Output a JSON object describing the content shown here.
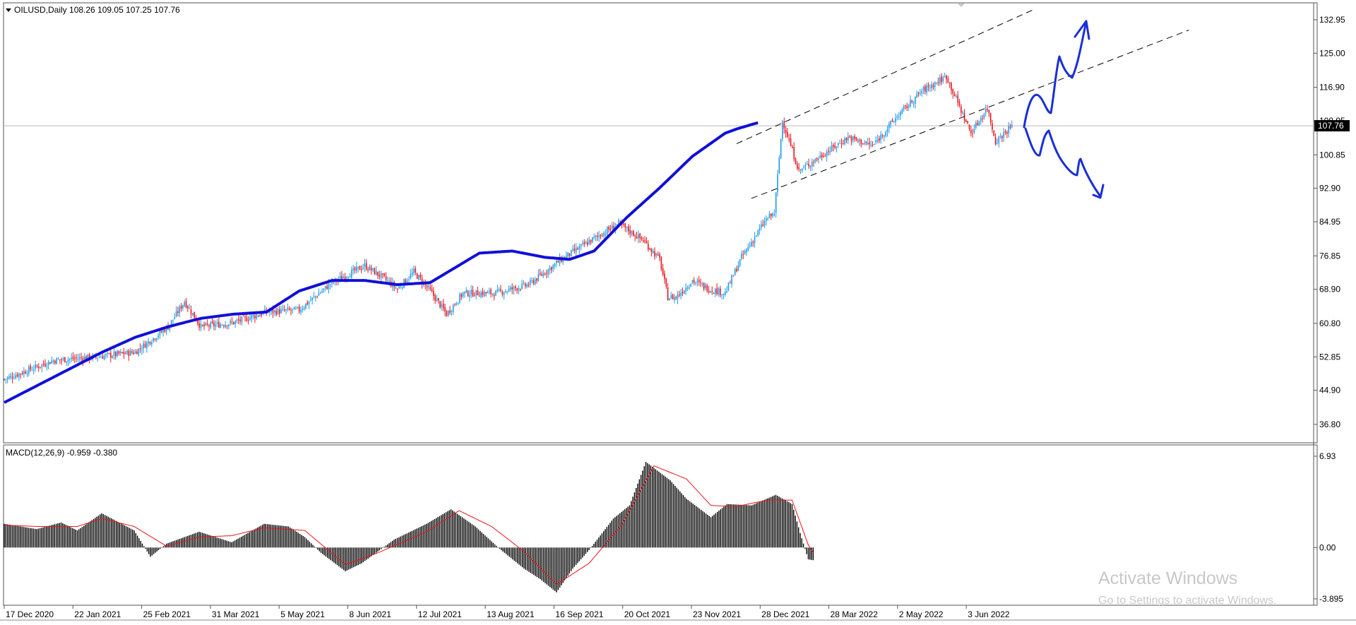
{
  "window": {
    "symbol_line": "OILUSD,Daily  108.26 109.05 107.25 107.76"
  },
  "watermark": {
    "line1": "Activate Windows",
    "line2": "Go to Settings to activate Windows."
  },
  "colors": {
    "bull": "#1e9bea",
    "bear": "#e8141c",
    "ma": "#1010d8",
    "annotation": "#1a2fd6",
    "macd_hist": "#000000",
    "macd_signal": "#e8141c"
  },
  "chart_data": [
    {
      "type": "candlestick",
      "title": "OILUSD,Daily",
      "ohlc_readout": {
        "open": 108.26,
        "high": 109.05,
        "low": 107.25,
        "close": 107.76
      },
      "current_price_label": "107.76",
      "y_ticks": [
        "132.95",
        "125.00",
        "116.90",
        "108.95",
        "100.85",
        "92.90",
        "84.95",
        "76.85",
        "68.90",
        "60.80",
        "52.85",
        "44.90",
        "36.80"
      ],
      "ylim": [
        33.6,
        136.3
      ],
      "x_ticks": [
        "17 Dec 2020",
        "22 Jan 2021",
        "25 Feb 2021",
        "31 Mar 2021",
        "5 May 2021",
        "8 Jun 2021",
        "12 Jul 2021",
        "13 Aug 2021",
        "16 Sep 2021",
        "20 Oct 2021",
        "23 Nov 2021",
        "28 Dec 2021",
        "28 Mar 2022",
        "2 May 2022",
        "3 Jun 2022"
      ],
      "price_path": [
        [
          0,
          47.5
        ],
        [
          30,
          52
        ],
        [
          60,
          53
        ],
        [
          80,
          54
        ],
        [
          100,
          60
        ],
        [
          110,
          66
        ],
        [
          120,
          60
        ],
        [
          140,
          61
        ],
        [
          160,
          63.5
        ],
        [
          180,
          64
        ],
        [
          200,
          70.5
        ],
        [
          220,
          74.5
        ],
        [
          230,
          72
        ],
        [
          240,
          69
        ],
        [
          250,
          73
        ],
        [
          260,
          68.5
        ],
        [
          270,
          63
        ],
        [
          280,
          68
        ],
        [
          300,
          68
        ],
        [
          320,
          70
        ],
        [
          340,
          76
        ],
        [
          360,
          81
        ],
        [
          375,
          84.5
        ],
        [
          390,
          80.5
        ],
        [
          400,
          76
        ],
        [
          405,
          67
        ],
        [
          410,
          67
        ],
        [
          420,
          71
        ],
        [
          430,
          69
        ],
        [
          440,
          68
        ],
        [
          450,
          76.5
        ],
        [
          465,
          85.5
        ],
        [
          470,
          87
        ],
        [
          475,
          109
        ],
        [
          485,
          97
        ],
        [
          500,
          101
        ],
        [
          515,
          105
        ],
        [
          530,
          103
        ],
        [
          545,
          110
        ],
        [
          560,
          116
        ],
        [
          575,
          119.5
        ],
        [
          590,
          106
        ],
        [
          600,
          112
        ],
        [
          605,
          104
        ],
        [
          615,
          107.8
        ]
      ],
      "moving_average": [
        [
          0,
          42
        ],
        [
          20,
          46
        ],
        [
          40,
          50
        ],
        [
          60,
          54
        ],
        [
          80,
          57.5
        ],
        [
          100,
          60
        ],
        [
          120,
          62
        ],
        [
          140,
          63
        ],
        [
          160,
          63.5
        ],
        [
          170,
          66
        ],
        [
          180,
          68.5
        ],
        [
          200,
          71
        ],
        [
          220,
          71
        ],
        [
          240,
          70
        ],
        [
          260,
          70.5
        ],
        [
          275,
          74
        ],
        [
          290,
          77.5
        ],
        [
          310,
          78
        ],
        [
          330,
          76.5
        ],
        [
          345,
          76
        ],
        [
          360,
          78
        ],
        [
          380,
          86
        ],
        [
          400,
          93
        ],
        [
          420,
          100.5
        ],
        [
          440,
          106
        ],
        [
          447,
          107
        ],
        [
          460,
          108.5
        ]
      ],
      "channel_upper": [
        [
          447,
          103.5
        ],
        [
          629,
          135.5
        ]
      ],
      "channel_lower": [
        [
          456,
          90.5
        ],
        [
          723,
          130.5
        ]
      ]
    },
    {
      "type": "bar",
      "title": "MACD(12,26,9) -0.959 -0.380",
      "series_names": [
        "MACD",
        "Signal"
      ],
      "y_ticks": [
        "6.93",
        "0.00",
        "-3.895"
      ],
      "ylim": [
        -3.895,
        6.93
      ],
      "macd": [
        [
          0,
          1.8
        ],
        [
          20,
          1.4
        ],
        [
          35,
          1.9
        ],
        [
          45,
          1.3
        ],
        [
          60,
          2.6
        ],
        [
          80,
          1.3
        ],
        [
          90,
          -0.7
        ],
        [
          100,
          0.3
        ],
        [
          120,
          1.2
        ],
        [
          140,
          0.4
        ],
        [
          160,
          1.8
        ],
        [
          175,
          1.6
        ],
        [
          185,
          0.8
        ],
        [
          195,
          -0.4
        ],
        [
          210,
          -1.8
        ],
        [
          220,
          -1.2
        ],
        [
          240,
          0.6
        ],
        [
          260,
          1.8
        ],
        [
          275,
          2.9
        ],
        [
          290,
          1.6
        ],
        [
          305,
          -0.1
        ],
        [
          320,
          -1.6
        ],
        [
          330,
          -2.4
        ],
        [
          340,
          -3.4
        ],
        [
          350,
          -1.6
        ],
        [
          360,
          -0.2
        ],
        [
          375,
          2.2
        ],
        [
          385,
          3.2
        ],
        [
          395,
          6.5
        ],
        [
          410,
          5.1
        ],
        [
          420,
          3.7
        ],
        [
          435,
          2.3
        ],
        [
          445,
          3.3
        ],
        [
          460,
          3.2
        ],
        [
          475,
          4.0
        ],
        [
          485,
          3.3
        ],
        [
          490,
          1.1
        ],
        [
          495,
          -0.9
        ],
        [
          498,
          -0.96
        ]
      ],
      "signal": [
        [
          0,
          1.7
        ],
        [
          20,
          1.6
        ],
        [
          35,
          1.6
        ],
        [
          45,
          1.6
        ],
        [
          60,
          2.2
        ],
        [
          80,
          1.6
        ],
        [
          100,
          0.1
        ],
        [
          120,
          0.8
        ],
        [
          140,
          0.9
        ],
        [
          160,
          1.5
        ],
        [
          185,
          1.3
        ],
        [
          210,
          -1.3
        ],
        [
          230,
          -0.4
        ],
        [
          260,
          1.2
        ],
        [
          280,
          2.8
        ],
        [
          300,
          1.6
        ],
        [
          320,
          -0.3
        ],
        [
          340,
          -2.8
        ],
        [
          360,
          -1.2
        ],
        [
          380,
          1.7
        ],
        [
          400,
          6.2
        ],
        [
          420,
          5.2
        ],
        [
          435,
          3.2
        ],
        [
          450,
          3.1
        ],
        [
          470,
          3.6
        ],
        [
          485,
          3.6
        ],
        [
          495,
          0.2
        ],
        [
          498,
          -0.38
        ]
      ]
    }
  ]
}
